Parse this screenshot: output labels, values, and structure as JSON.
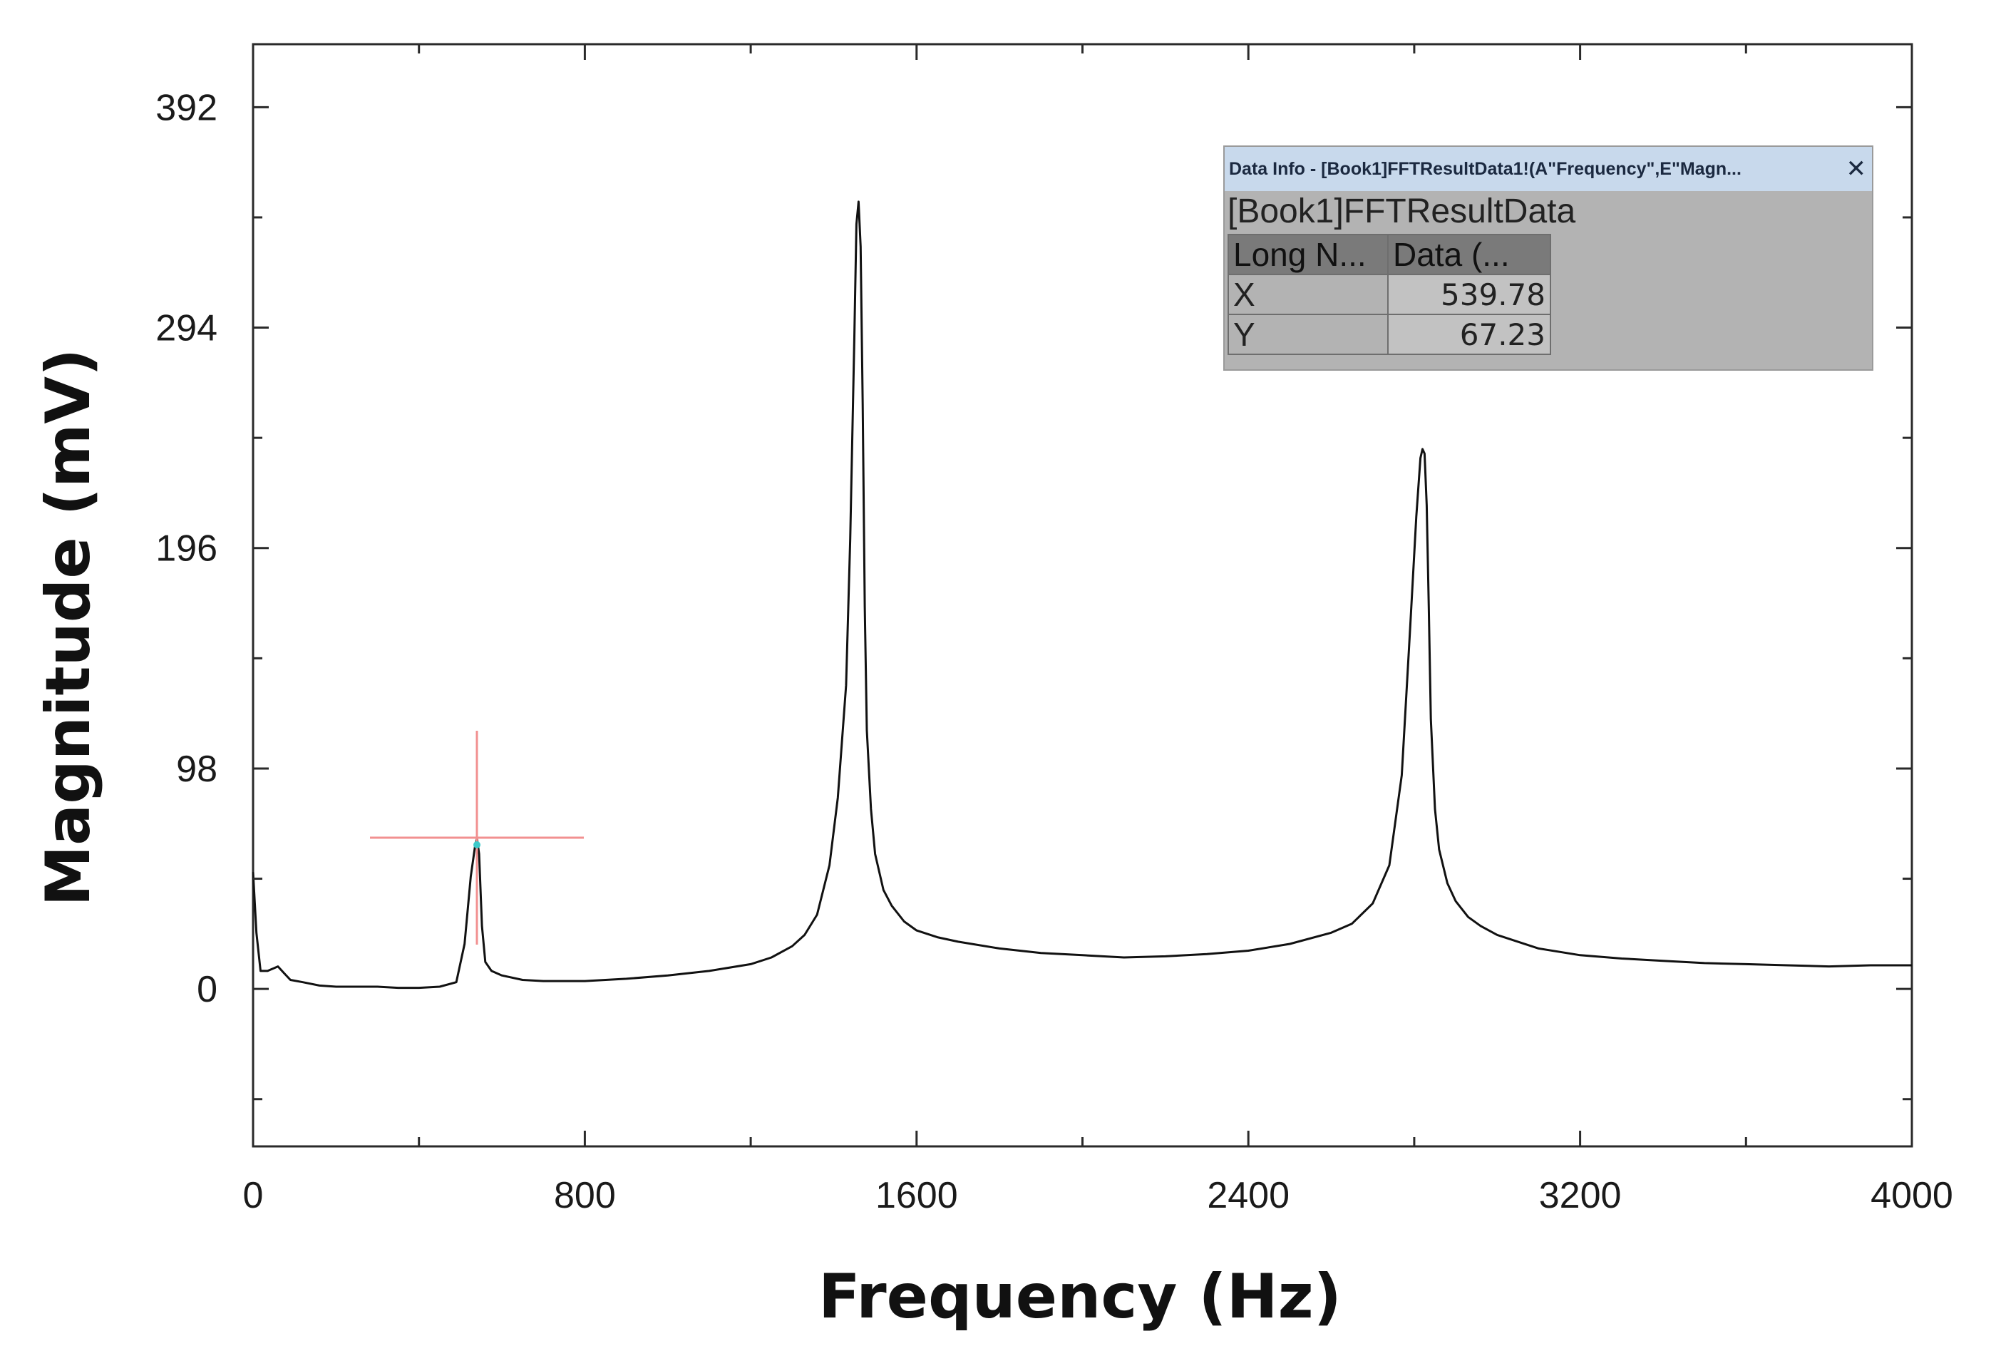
{
  "chart_data": {
    "type": "line",
    "title": "",
    "xlabel": "Frequency (Hz)",
    "ylabel": "Magnitude (mV)",
    "xlim": [
      0,
      4000
    ],
    "ylim": [
      -70,
      420
    ],
    "x_ticks": [
      0,
      800,
      1600,
      2400,
      3200,
      4000
    ],
    "x_tick_labels": [
      "0",
      "800",
      "1600",
      "2400",
      "3200",
      "4000"
    ],
    "y_ticks": [
      0,
      98,
      196,
      294,
      392
    ],
    "y_tick_labels": [
      "0",
      "98",
      "196",
      "294",
      "392"
    ],
    "grid": false,
    "legend": "none",
    "colors": {
      "line": "#111111",
      "crosshair": "#f29090",
      "cursor_point": "#3cc9c9"
    },
    "series": [
      {
        "x": [
          0,
          8,
          18,
          35,
          60,
          75,
          90,
          120,
          160,
          200,
          250,
          300,
          350,
          400,
          450,
          490,
          510,
          525,
          535,
          540,
          545,
          552,
          560,
          575,
          600,
          650,
          700,
          800,
          900,
          1000,
          1100,
          1200,
          1250,
          1300,
          1330,
          1360,
          1390,
          1410,
          1430,
          1440,
          1450,
          1455,
          1460,
          1465,
          1470,
          1475,
          1480,
          1490,
          1500,
          1520,
          1540,
          1570,
          1600,
          1650,
          1700,
          1800,
          1900,
          2000,
          2100,
          2200,
          2300,
          2400,
          2500,
          2600,
          2650,
          2700,
          2740,
          2770,
          2790,
          2805,
          2815,
          2820,
          2825,
          2830,
          2835,
          2840,
          2850,
          2860,
          2880,
          2900,
          2930,
          2960,
          3000,
          3050,
          3100,
          3200,
          3300,
          3400,
          3500,
          3600,
          3700,
          3800,
          3900,
          4000
        ],
        "y": [
          52,
          25,
          8,
          8,
          10,
          7,
          4,
          3,
          1.5,
          1,
          1,
          1,
          0.5,
          0.5,
          1,
          3,
          20,
          50,
          63,
          67,
          60,
          28,
          12,
          8,
          6,
          4,
          3.5,
          3.5,
          4.5,
          6,
          8,
          11,
          14,
          19,
          24,
          33,
          55,
          85,
          135,
          200,
          290,
          340,
          350,
          330,
          260,
          170,
          115,
          80,
          60,
          44,
          37,
          30,
          26,
          23,
          21,
          18,
          16,
          15,
          14,
          14.5,
          15.5,
          17,
          20,
          25,
          29,
          38,
          55,
          95,
          160,
          210,
          236,
          240,
          238,
          215,
          170,
          120,
          80,
          62,
          47,
          39,
          32,
          28,
          24,
          21,
          18,
          15,
          13.5,
          12.5,
          11.5,
          11,
          10.5,
          10,
          10.5,
          10.5
        ]
      }
    ],
    "cursor": {
      "x": 539.78,
      "y": 67.23
    }
  },
  "data_info": {
    "title": "Data Info - [Book1]FFTResultData1!(A\"Frequency\",E\"Magn...",
    "close_glyph": "✕",
    "book": "[Book1]FFTResultData",
    "headers": [
      "Long N...",
      "Data (..."
    ],
    "rows": [
      {
        "label": "X",
        "value": "539.78"
      },
      {
        "label": "Y",
        "value": "67.23"
      }
    ]
  }
}
